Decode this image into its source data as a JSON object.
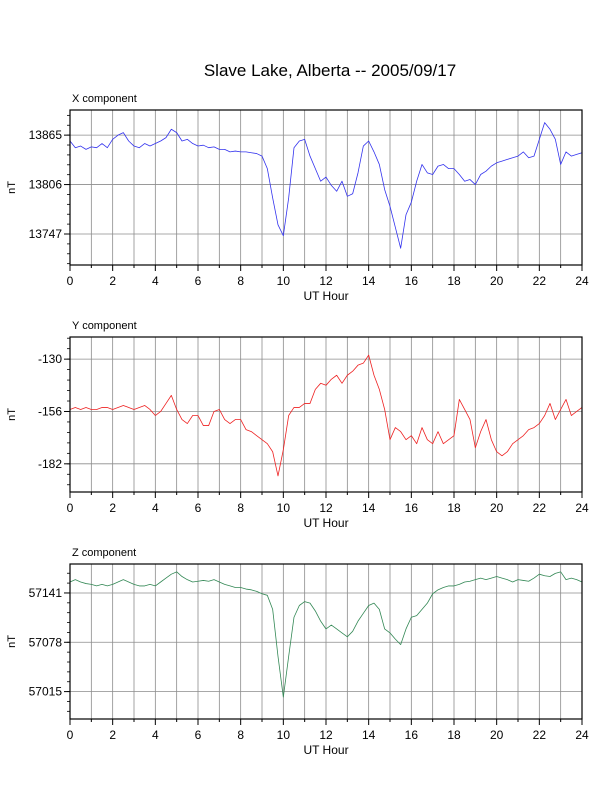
{
  "title": "Slave Lake, Alberta -- 2005/09/17",
  "chart_data": [
    {
      "type": "line",
      "title": "X component",
      "xlabel": "UT Hour",
      "ylabel": "nT",
      "xlim": [
        0,
        24
      ],
      "ylim": [
        13710,
        13895
      ],
      "xticks": [
        0,
        2,
        4,
        6,
        8,
        10,
        12,
        14,
        16,
        18,
        20,
        22,
        24
      ],
      "yticks": [
        13747,
        13806,
        13865
      ],
      "grid": true,
      "color": "#3333ee",
      "series": [
        {
          "x": [
            0,
            0.25,
            0.5,
            0.75,
            1,
            1.25,
            1.5,
            1.75,
            2,
            2.25,
            2.5,
            2.75,
            3,
            3.25,
            3.5,
            3.75,
            4,
            4.25,
            4.5,
            4.75,
            5,
            5.25,
            5.5,
            5.75,
            6,
            6.25,
            6.5,
            6.75,
            7,
            7.25,
            7.5,
            7.75,
            8,
            8.25,
            8.5,
            8.75,
            9,
            9.25,
            9.5,
            9.75,
            10,
            10.25,
            10.5,
            10.75,
            11,
            11.25,
            11.5,
            11.75,
            12,
            12.25,
            12.5,
            12.75,
            13,
            13.25,
            13.5,
            13.75,
            14,
            14.25,
            14.5,
            14.75,
            15,
            15.25,
            15.5,
            15.75,
            16,
            16.25,
            16.5,
            16.75,
            17,
            17.25,
            17.5,
            17.75,
            18,
            18.25,
            18.5,
            18.75,
            19,
            19.25,
            19.5,
            19.75,
            20,
            20.25,
            20.5,
            20.75,
            21,
            21.25,
            21.5,
            21.75,
            22,
            22.25,
            22.5,
            22.75,
            23,
            23.25,
            23.5,
            23.75,
            24
          ],
          "y": [
            13858,
            13850,
            13852,
            13848,
            13851,
            13850,
            13855,
            13850,
            13860,
            13865,
            13868,
            13858,
            13852,
            13850,
            13855,
            13852,
            13855,
            13858,
            13862,
            13872,
            13868,
            13858,
            13860,
            13855,
            13852,
            13853,
            13850,
            13851,
            13848,
            13848,
            13845,
            13846,
            13845,
            13845,
            13844,
            13843,
            13840,
            13825,
            13790,
            13758,
            13745,
            13790,
            13850,
            13858,
            13860,
            13840,
            13825,
            13810,
            13815,
            13805,
            13798,
            13810,
            13792,
            13795,
            13820,
            13852,
            13858,
            13845,
            13830,
            13800,
            13780,
            13755,
            13730,
            13770,
            13785,
            13810,
            13830,
            13820,
            13818,
            13828,
            13830,
            13825,
            13825,
            13818,
            13810,
            13812,
            13806,
            13818,
            13822,
            13828,
            13832,
            13834,
            13836,
            13838,
            13840,
            13845,
            13838,
            13840,
            13860,
            13880,
            13872,
            13860,
            13830,
            13845,
            13840,
            13842,
            13844
          ]
        }
      ]
    },
    {
      "type": "line",
      "title": "Y component",
      "xlabel": "UT Hour",
      "ylabel": "nT",
      "xlim": [
        0,
        24
      ],
      "ylim": [
        -196,
        -119
      ],
      "xticks": [
        0,
        2,
        4,
        6,
        8,
        10,
        12,
        14,
        16,
        18,
        20,
        22,
        24
      ],
      "yticks": [
        -130,
        -156,
        -182
      ],
      "grid": true,
      "color": "#ee2222",
      "series": [
        {
          "x": [
            0,
            0.25,
            0.5,
            0.75,
            1,
            1.25,
            1.5,
            1.75,
            2,
            2.25,
            2.5,
            2.75,
            3,
            3.25,
            3.5,
            3.75,
            4,
            4.25,
            4.5,
            4.75,
            5,
            5.25,
            5.5,
            5.75,
            6,
            6.25,
            6.5,
            6.75,
            7,
            7.25,
            7.5,
            7.75,
            8,
            8.25,
            8.5,
            8.75,
            9,
            9.25,
            9.5,
            9.75,
            10,
            10.25,
            10.5,
            10.75,
            11,
            11.25,
            11.5,
            11.75,
            12,
            12.25,
            12.5,
            12.75,
            13,
            13.25,
            13.5,
            13.75,
            14,
            14.25,
            14.5,
            14.75,
            15,
            15.25,
            15.5,
            15.75,
            16,
            16.25,
            16.5,
            16.75,
            17,
            17.25,
            17.5,
            17.75,
            18,
            18.25,
            18.5,
            18.75,
            19,
            19.25,
            19.5,
            19.75,
            20,
            20.25,
            20.5,
            20.75,
            21,
            21.25,
            21.5,
            21.75,
            22,
            22.25,
            22.5,
            22.75,
            23,
            23.25,
            23.5,
            23.75,
            24
          ],
          "y": [
            -155,
            -154,
            -155,
            -154,
            -155,
            -155,
            -154,
            -154,
            -155,
            -154,
            -153,
            -154,
            -155,
            -154,
            -153,
            -155,
            -158,
            -156,
            -152,
            -148,
            -155,
            -160,
            -162,
            -158,
            -158,
            -163,
            -163,
            -156,
            -155,
            -160,
            -162,
            -160,
            -160,
            -165,
            -166,
            -168,
            -170,
            -172,
            -176,
            -188,
            -175,
            -158,
            -154,
            -154,
            -152,
            -152,
            -145,
            -142,
            -143,
            -140,
            -138,
            -142,
            -138,
            -136,
            -133,
            -132,
            -128,
            -138,
            -145,
            -155,
            -170,
            -164,
            -166,
            -170,
            -168,
            -172,
            -164,
            -170,
            -172,
            -166,
            -172,
            -170,
            -168,
            -150,
            -155,
            -160,
            -174,
            -166,
            -160,
            -170,
            -176,
            -178,
            -176,
            -172,
            -170,
            -168,
            -165,
            -164,
            -162,
            -158,
            -152,
            -160,
            -155,
            -150,
            -158,
            -156,
            -154
          ]
        }
      ]
    },
    {
      "type": "line",
      "title": "Z component",
      "xlabel": "UT Hour",
      "ylabel": "nT",
      "xlim": [
        0,
        24
      ],
      "ylim": [
        56980,
        57178
      ],
      "xticks": [
        0,
        2,
        4,
        6,
        8,
        10,
        12,
        14,
        16,
        18,
        20,
        22,
        24
      ],
      "yticks": [
        57015,
        57078,
        57141
      ],
      "grid": true,
      "color": "#338855",
      "series": [
        {
          "x": [
            0,
            0.25,
            0.5,
            0.75,
            1,
            1.25,
            1.5,
            1.75,
            2,
            2.25,
            2.5,
            2.75,
            3,
            3.25,
            3.5,
            3.75,
            4,
            4.25,
            4.5,
            4.75,
            5,
            5.25,
            5.5,
            5.75,
            6,
            6.25,
            6.5,
            6.75,
            7,
            7.25,
            7.5,
            7.75,
            8,
            8.25,
            8.5,
            8.75,
            9,
            9.25,
            9.5,
            9.75,
            10,
            10.25,
            10.5,
            10.75,
            11,
            11.25,
            11.5,
            11.75,
            12,
            12.25,
            12.5,
            12.75,
            13,
            13.25,
            13.5,
            13.75,
            14,
            14.25,
            14.5,
            14.75,
            15,
            15.25,
            15.5,
            15.75,
            16,
            16.25,
            16.5,
            16.75,
            17,
            17.25,
            17.5,
            17.75,
            18,
            18.25,
            18.5,
            18.75,
            19,
            19.25,
            19.5,
            19.75,
            20,
            20.25,
            20.5,
            20.75,
            21,
            21.25,
            21.5,
            21.75,
            22,
            22.25,
            22.5,
            22.75,
            23,
            23.25,
            23.5,
            23.75,
            24
          ],
          "y": [
            57155,
            57158,
            57155,
            57153,
            57152,
            57150,
            57152,
            57150,
            57152,
            57155,
            57158,
            57155,
            57152,
            57150,
            57150,
            57152,
            57150,
            57155,
            57160,
            57165,
            57168,
            57162,
            57158,
            57155,
            57156,
            57157,
            57156,
            57158,
            57155,
            57152,
            57150,
            57148,
            57148,
            57146,
            57145,
            57143,
            57140,
            57138,
            57120,
            57060,
            57008,
            57060,
            57110,
            57125,
            57130,
            57128,
            57118,
            57105,
            57095,
            57100,
            57095,
            57090,
            57085,
            57092,
            57105,
            57115,
            57125,
            57128,
            57120,
            57095,
            57090,
            57082,
            57075,
            57095,
            57110,
            57112,
            57120,
            57128,
            57140,
            57145,
            57148,
            57150,
            57150,
            57152,
            57155,
            57156,
            57158,
            57160,
            57158,
            57160,
            57162,
            57160,
            57158,
            57155,
            57158,
            57157,
            57156,
            57160,
            57165,
            57163,
            57162,
            57166,
            57168,
            57158,
            57160,
            57158,
            57155
          ]
        }
      ]
    }
  ]
}
